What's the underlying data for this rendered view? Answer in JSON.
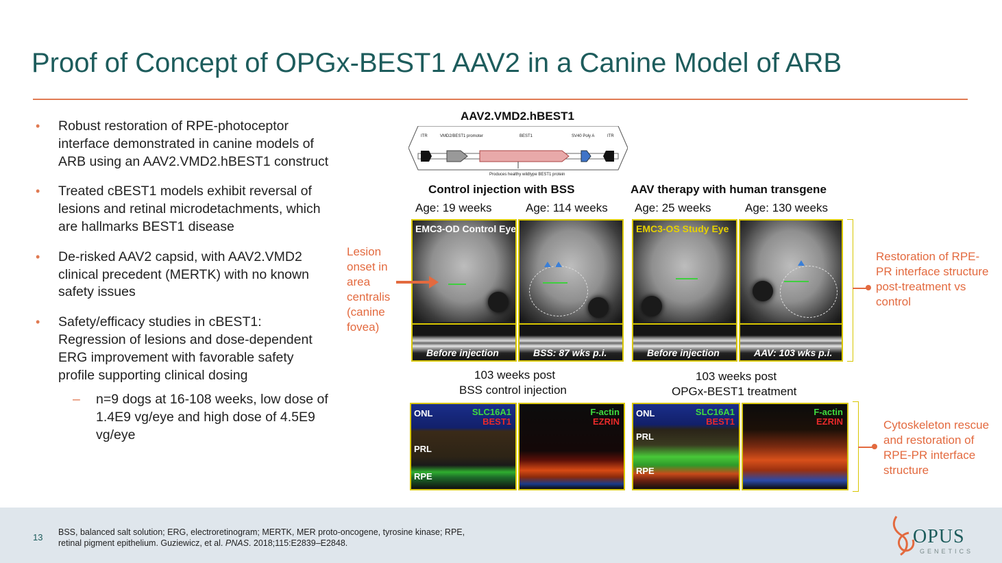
{
  "title": "Proof of Concept of OPGx-BEST1 AAV2 in a Canine Model of ARB",
  "bullets": [
    "Robust restoration of RPE-photoceptor interface demonstrated in canine models of ARB using an AAV2.VMD2.hBEST1 construct",
    "Treated cBEST1 models exhibit reversal of lesions and retinal microdetachments, which are hallmarks BEST1 disease",
    "De-risked AAV2 capsid, with AAV2.VMD2 clinical precedent (MERTK) with no known safety issues",
    "Safety/efficacy studies in cBEST1: Regression of lesions and dose-dependent ERG improvement with favorable safety profile supporting clinical dosing"
  ],
  "sub_bullet": "n=9 dogs at 16-108 weeks, low dose of 1.4E9 vg/eye and high dose of 4.5E9 vg/eye",
  "construct": {
    "title": "AAV2.VMD2.hBEST1",
    "itr_left": "ITR",
    "promoter": "VMD2/BEST1 promoter",
    "gene": "BEST1",
    "polya": "SV40 Poly A",
    "itr_right": "ITR",
    "caption": "Produces healthy wildtype BEST1 protein"
  },
  "groups": {
    "control": "Control injection with BSS",
    "aav": "AAV therapy with human transgene"
  },
  "ages": [
    "Age: 19 weeks",
    "Age: 114 weeks",
    "Age: 25 weeks",
    "Age: 130 weeks"
  ],
  "panels": {
    "p1_top": "EMC3-OD Control Eye",
    "p1_bottom": "Before injection",
    "p2_bottom": "BSS: 87 wks p.i.",
    "p3_top": "EMC3-OS Study Eye",
    "p3_bottom": "Before injection",
    "p4_bottom": "AAV: 103 wks p.i."
  },
  "lesion_label": "Lesion onset in area centralis (canine fovea)",
  "restoration_label": "Restoration of RPE-PR interface structure post-treatment vs control",
  "post": {
    "control_l1": "103 weeks post",
    "control_l2": "BSS control injection",
    "aav_l1": "103 weeks post",
    "aav_l2": "OPGx-BEST1 treatment"
  },
  "ihc": {
    "onl": "ONL",
    "prl": "PRL",
    "rpe": "RPE",
    "slc": "SLC16A1",
    "best1": "BEST1",
    "factin": "F-actin",
    "ezrin": "EZRIN"
  },
  "cyto_label": "Cytoskeleton rescue and restoration of RPE-PR interface structure",
  "footer": {
    "page": "13",
    "note_pre": "BSS, balanced salt solution; ERG, electroretinogram; MERTK, MER proto-oncogene, tyrosine kinase; RPE, retinal pigment epithelium. Guziewicz, et al. ",
    "journal": "PNAS",
    "note_post": ". 2018;115:E2839–E2848.",
    "logo": "OPUS",
    "logo_sub": "GENETICS"
  },
  "colors": {
    "title": "#1d5c5c",
    "accent": "#e36a3f",
    "panel_border": "#d8c600"
  }
}
